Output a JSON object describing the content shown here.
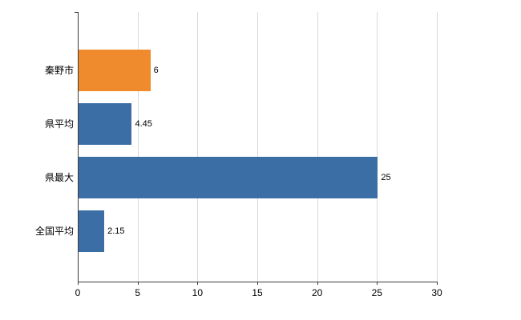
{
  "chart_data": {
    "type": "bar",
    "orientation": "horizontal",
    "title": "",
    "xlabel": "",
    "ylabel": "",
    "categories": [
      "秦野市",
      "県平均",
      "県最大",
      "全国平均"
    ],
    "values": [
      6,
      4.45,
      25,
      2.15
    ],
    "value_labels": [
      "6",
      "4.45",
      "25",
      "2.15"
    ],
    "bar_colors": [
      "#f08b2d",
      "#3a6ea5",
      "#3a6ea5",
      "#3a6ea5"
    ],
    "xlim": [
      0,
      30
    ],
    "x_ticks": [
      "0",
      "5",
      "10",
      "15",
      "20",
      "25",
      "30"
    ],
    "grid": true,
    "legend": "none"
  },
  "colors": {
    "grid": "#d9d9d9",
    "axis": "#3c3c3c",
    "text": "#000000"
  }
}
